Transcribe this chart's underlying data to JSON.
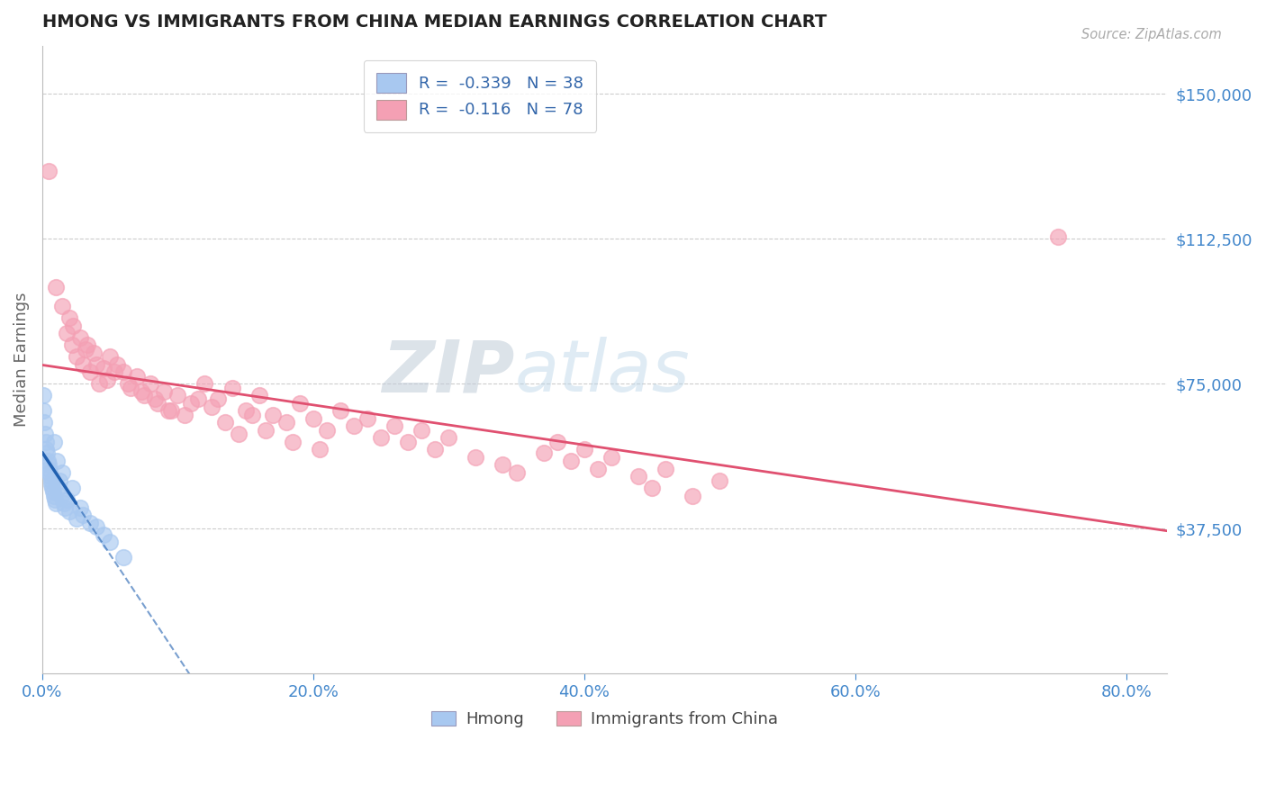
{
  "title": "HMONG VS IMMIGRANTS FROM CHINA MEDIAN EARNINGS CORRELATION CHART",
  "source": "Source: ZipAtlas.com",
  "xlabel_ticks": [
    "0.0%",
    "20.0%",
    "40.0%",
    "60.0%",
    "80.0%"
  ],
  "xlabel_vals": [
    0.0,
    20.0,
    40.0,
    60.0,
    80.0
  ],
  "ylabel_labels": [
    "$37,500",
    "$75,000",
    "$112,500",
    "$150,000"
  ],
  "ylabel_vals": [
    37500,
    75000,
    112500,
    150000
  ],
  "ylim": [
    0,
    162500
  ],
  "xlim": [
    0,
    83
  ],
  "watermark": "ZIPatlas",
  "hmong_color": "#a8c8f0",
  "china_color": "#f4a0b4",
  "hmong_R": -0.339,
  "hmong_N": 38,
  "china_R": -0.116,
  "china_N": 78,
  "legend_label_1": "Hmong",
  "legend_label_2": "Immigrants from China",
  "ylabel": "Median Earnings",
  "hmong_x": [
    0.05,
    0.1,
    0.15,
    0.2,
    0.25,
    0.3,
    0.35,
    0.4,
    0.45,
    0.5,
    0.55,
    0.6,
    0.65,
    0.7,
    0.75,
    0.8,
    0.85,
    0.9,
    0.95,
    1.0,
    1.1,
    1.2,
    1.3,
    1.4,
    1.5,
    1.6,
    1.7,
    1.8,
    2.0,
    2.2,
    2.5,
    2.8,
    3.0,
    3.5,
    4.0,
    4.5,
    5.0,
    6.0
  ],
  "hmong_y": [
    72000,
    68000,
    65000,
    62000,
    60000,
    58000,
    57000,
    55000,
    54000,
    53000,
    52000,
    51000,
    50000,
    49000,
    48000,
    47000,
    60000,
    46000,
    45000,
    44000,
    55000,
    48000,
    50000,
    46000,
    52000,
    44000,
    43000,
    45000,
    42000,
    48000,
    40000,
    43000,
    41000,
    39000,
    38000,
    36000,
    34000,
    30000
  ],
  "china_x": [
    0.5,
    1.0,
    1.5,
    1.8,
    2.0,
    2.2,
    2.5,
    2.8,
    3.0,
    3.2,
    3.5,
    3.8,
    4.0,
    4.2,
    4.5,
    4.8,
    5.0,
    5.5,
    6.0,
    6.5,
    7.0,
    7.5,
    8.0,
    8.5,
    9.0,
    9.5,
    10.0,
    11.0,
    12.0,
    13.0,
    14.0,
    15.0,
    16.0,
    17.0,
    18.0,
    19.0,
    20.0,
    21.0,
    22.0,
    23.0,
    24.0,
    25.0,
    26.0,
    27.0,
    28.0,
    29.0,
    30.0,
    32.0,
    34.0,
    35.0,
    37.0,
    38.0,
    39.0,
    40.0,
    41.0,
    42.0,
    44.0,
    45.0,
    46.0,
    48.0,
    50.0,
    2.3,
    3.3,
    5.3,
    6.3,
    7.3,
    8.3,
    9.3,
    10.5,
    11.5,
    12.5,
    13.5,
    14.5,
    15.5,
    16.5,
    18.5,
    75.0,
    20.5
  ],
  "china_y": [
    130000,
    100000,
    95000,
    88000,
    92000,
    85000,
    82000,
    87000,
    80000,
    84000,
    78000,
    83000,
    80000,
    75000,
    79000,
    76000,
    82000,
    80000,
    78000,
    74000,
    77000,
    72000,
    75000,
    70000,
    73000,
    68000,
    72000,
    70000,
    75000,
    71000,
    74000,
    68000,
    72000,
    67000,
    65000,
    70000,
    66000,
    63000,
    68000,
    64000,
    66000,
    61000,
    64000,
    60000,
    63000,
    58000,
    61000,
    56000,
    54000,
    52000,
    57000,
    60000,
    55000,
    58000,
    53000,
    56000,
    51000,
    48000,
    53000,
    46000,
    50000,
    90000,
    85000,
    78000,
    75000,
    73000,
    71000,
    68000,
    67000,
    71000,
    69000,
    65000,
    62000,
    67000,
    63000,
    60000,
    113000,
    58000
  ]
}
